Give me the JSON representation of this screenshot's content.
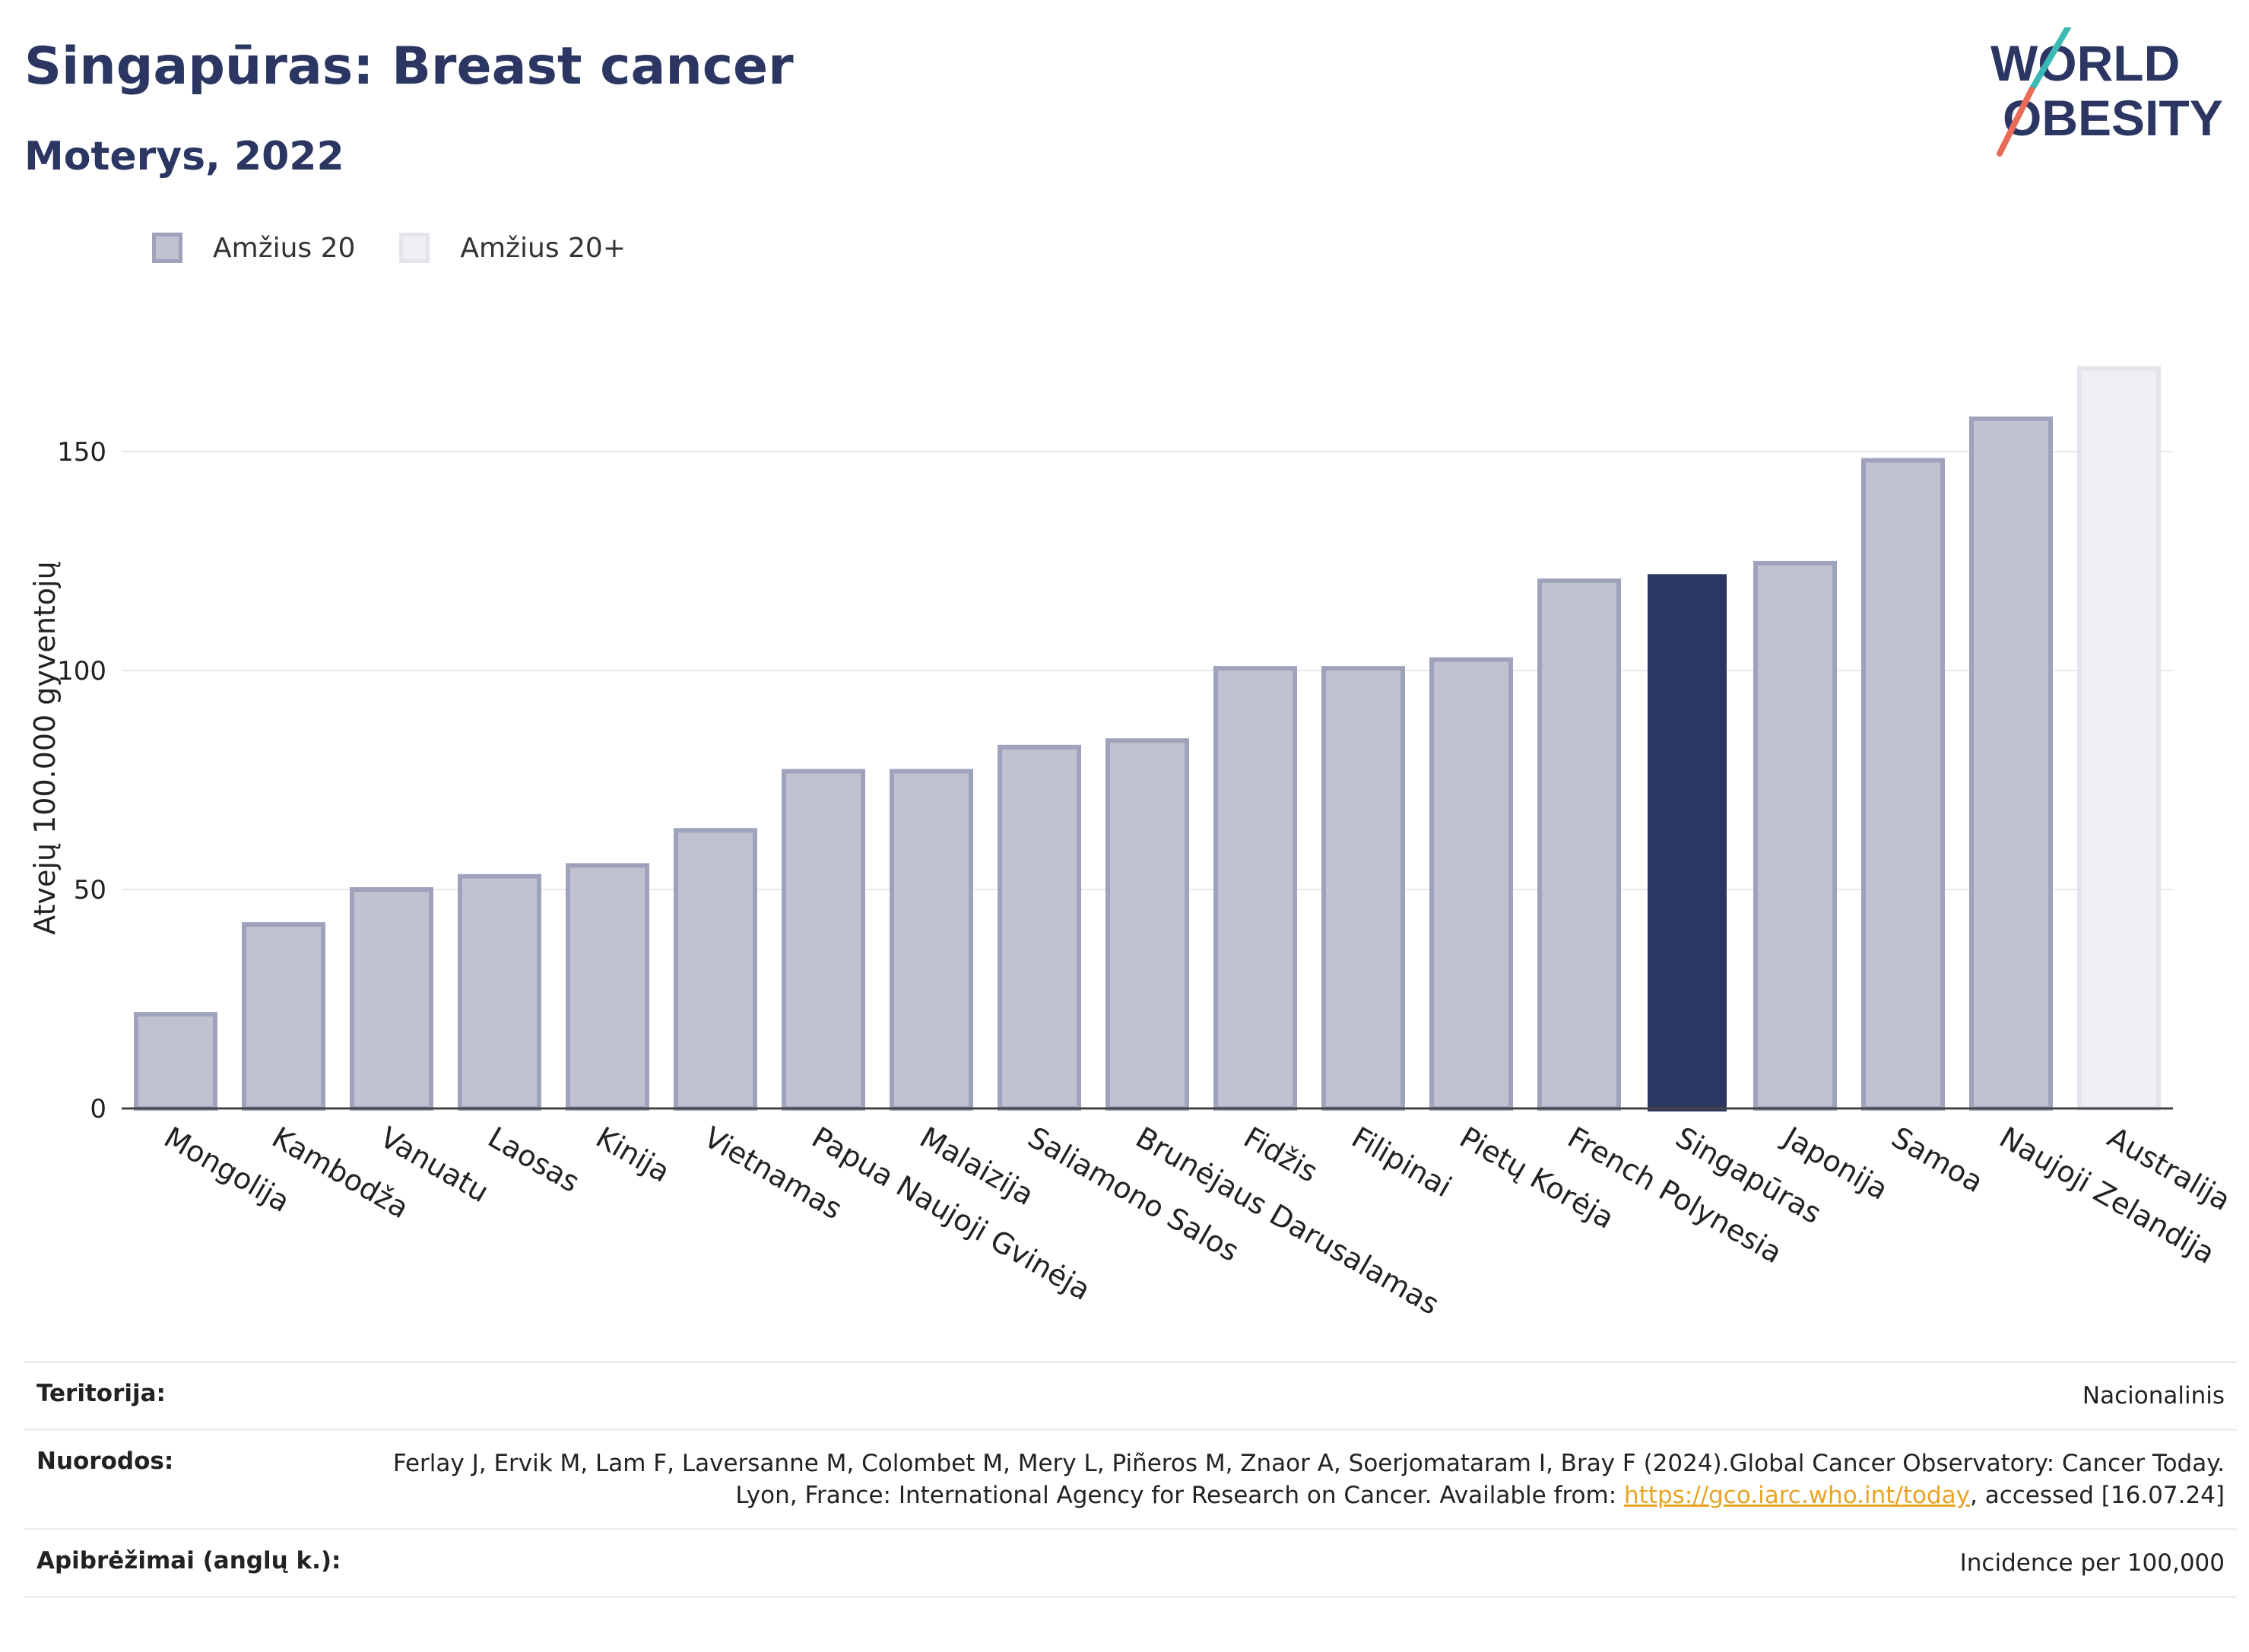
{
  "title": "Singapūras: Breast cancer",
  "subtitle": "Moterys, 2022",
  "logo": {
    "line1": "WORLD",
    "line2": "OBESITY"
  },
  "legend": [
    {
      "label": "Amžius 20",
      "color": "#bfc3d1"
    },
    {
      "label": "Amžius 20+",
      "color": "#eeeff3"
    }
  ],
  "chart_data": {
    "type": "bar",
    "ylabel": "Atvejų 100.000 gyventojų",
    "ylim": [
      0,
      175
    ],
    "yticks": [
      0,
      50,
      100,
      150
    ],
    "grid": true,
    "categories": [
      "Mongolija",
      "Kambodža",
      "Vanuatu",
      "Laosas",
      "Kinija",
      "Vietnamas",
      "Papua Naujoji Gvinėja",
      "Malaizija",
      "Saliamono Salos",
      "Brunėjaus Darusalamas",
      "Fidžis",
      "Filipinai",
      "Pietų Korėja",
      "French Polynesia",
      "Singapūras",
      "Japonija",
      "Samoa",
      "Naujoji Zelandija",
      "Australija"
    ],
    "values": [
      21.5,
      42,
      50,
      53,
      55.5,
      63.5,
      77,
      77,
      82.5,
      84,
      100.5,
      100.5,
      102.5,
      120.5,
      122,
      124.5,
      148,
      157.5,
      169
    ],
    "series_index": [
      0,
      0,
      0,
      0,
      0,
      0,
      0,
      0,
      0,
      0,
      0,
      0,
      0,
      0,
      0,
      0,
      0,
      0,
      1
    ],
    "highlight": "Singapūras",
    "colors": {
      "default": "#bfc3d1",
      "default_border": "#9ea3bb",
      "highlight": "#2b3663",
      "plus": "#eeeff3",
      "plus_border": "#e4e5ec"
    }
  },
  "footer": {
    "territory_label": "Teritorija:",
    "territory_value": "Nacionalinis",
    "refs_label": "Nuorodos:",
    "refs_text_before": "Ferlay J, Ervik M, Lam F, Laversanne M, Colombet M, Mery L, Piñeros M, Znaor A, Soerjomataram I, Bray F (2024).Global Cancer Observatory: Cancer Today. Lyon, France: International Agency for Research on Cancer. Available from: ",
    "refs_link": "https://gco.iarc.who.int/today",
    "refs_text_after": ", accessed [16.07.24]",
    "defs_label": "Apibrėžimai (anglų k.):",
    "defs_value": "Incidence per 100,000"
  }
}
